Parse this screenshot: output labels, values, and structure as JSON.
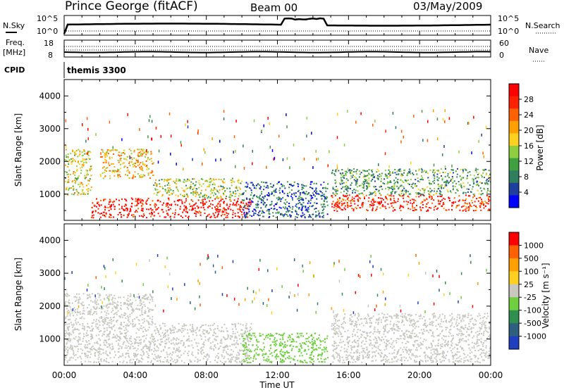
{
  "header": {
    "station": "Prince George (fitACF)",
    "beam": "Beam 00",
    "date": "03/May/2009"
  },
  "top_panels": {
    "nsky_label": "N.Sky",
    "nsearch_label": "N.Search",
    "nsky_ticks": [
      "10^5",
      "10^0"
    ],
    "nsearch_ticks": [
      "10^5",
      "10^0"
    ],
    "freq_label_1": "Freq.",
    "freq_label_2": "[MHz]",
    "freq_ticks": [
      "18",
      "8"
    ],
    "nave_label": "Nave",
    "nave_ticks": [
      "60",
      "0"
    ],
    "cpid_label": "CPID",
    "cpid_value": "themis 3300"
  },
  "panels": {
    "power": {
      "ylabel": "Slant Range [km]",
      "yticks": [
        "4000",
        "3000",
        "2000",
        "1000"
      ],
      "colorbar_label": "Power [dB]",
      "colorbar_ticks": [
        "28",
        "24",
        "20",
        "16",
        "12",
        "8",
        "4"
      ],
      "colors": [
        "#0000ff",
        "#1f3f9f",
        "#2f7f5f",
        "#3fa03f",
        "#8fcf3f",
        "#ffd020",
        "#ffa000",
        "#ff6000",
        "#ff2000",
        "#ff0000"
      ]
    },
    "velocity": {
      "ylabel": "Slant Range [km]",
      "yticks": [
        "4000",
        "3000",
        "2000",
        "1000"
      ],
      "colorbar_label": "Velocity [m s⁻¹]",
      "colorbar_ticks": [
        "1000",
        "500",
        "100",
        "25",
        "-25",
        "-100",
        "-500",
        "-1000"
      ],
      "colors": [
        "#1f3fbf",
        "#2f5f7f",
        "#2f8f4f",
        "#6fcf3f",
        "#c8c8c0",
        "#ffd020",
        "#ffa000",
        "#ff6000",
        "#ff0000"
      ]
    }
  },
  "xaxis": {
    "label": "Time UT",
    "ticks": [
      "00:00",
      "04:00",
      "08:00",
      "12:00",
      "16:00",
      "20:00",
      "00:00"
    ]
  },
  "chart_data": [
    {
      "type": "heatmap",
      "quantity": "Power",
      "unit": "dB",
      "xlabel": "Time UT",
      "ylabel": "Slant Range [km]",
      "x_range_hours": [
        0,
        24
      ],
      "ylim": [
        200,
        4500
      ],
      "color_scale": [
        0,
        30
      ],
      "regions": [
        {
          "t": [
            1.5,
            10.5
          ],
          "range_km": [
            300,
            900
          ],
          "value": 28
        },
        {
          "t": [
            0.0,
            1.5
          ],
          "range_km": [
            1000,
            2400
          ],
          "value": 16
        },
        {
          "t": [
            2.0,
            5.0
          ],
          "range_km": [
            1500,
            2400
          ],
          "value": 18
        },
        {
          "t": [
            5.0,
            10.0
          ],
          "range_km": [
            900,
            1500
          ],
          "value": 14
        },
        {
          "t": [
            10.0,
            14.8
          ],
          "range_km": [
            300,
            1400
          ],
          "value": 6
        },
        {
          "t": [
            15.0,
            24.0
          ],
          "range_km": [
            500,
            1000
          ],
          "value": 26
        },
        {
          "t": [
            15.0,
            24.0
          ],
          "range_km": [
            1000,
            1800
          ],
          "value": 10
        }
      ]
    },
    {
      "type": "heatmap",
      "quantity": "Velocity",
      "unit": "m s-1",
      "xlabel": "Time UT",
      "ylabel": "Slant Range [km]",
      "x_range_hours": [
        0,
        24
      ],
      "ylim": [
        200,
        4500
      ],
      "color_scale": [
        -1000,
        1000
      ],
      "regions": [
        {
          "t": [
            0.0,
            10.5
          ],
          "range_km": [
            300,
            1500
          ],
          "value": 0
        },
        {
          "t": [
            0.0,
            5.0
          ],
          "range_km": [
            1500,
            2400
          ],
          "value": 0
        },
        {
          "t": [
            10.0,
            14.8
          ],
          "range_km": [
            300,
            1200
          ],
          "value": -150
        },
        {
          "t": [
            15.0,
            24.0
          ],
          "range_km": [
            300,
            1800
          ],
          "value": 0
        }
      ]
    }
  ]
}
